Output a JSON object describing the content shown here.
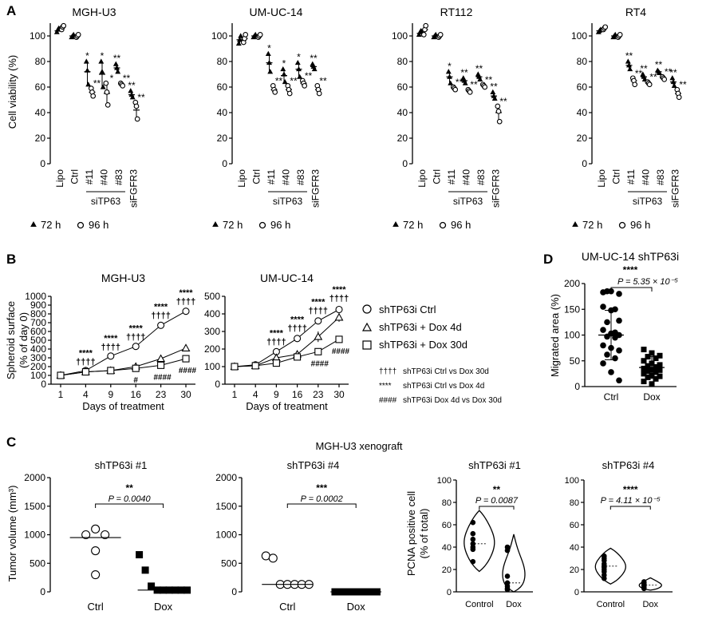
{
  "panels": {
    "A": "A",
    "B": "B",
    "C": "C",
    "D": "D"
  },
  "siTP63": "siTP63",
  "legend_A": {
    "t72": "72 h",
    "t96": "96 h"
  },
  "star_labels": {
    "s1": "*",
    "s2": "**",
    "s3": "***",
    "s4": "****",
    "dagger4": "††††",
    "hash1": "#",
    "hash4": "####"
  },
  "chart_data": [
    {
      "id": "A1",
      "type": "scatter",
      "title": "MGH-U3",
      "ylabel": "Cell viability (%)",
      "ylim": [
        0,
        110
      ],
      "yticks": [
        "0",
        "20",
        "40",
        "60",
        "80",
        "100"
      ],
      "categories": [
        "Lipo",
        "Ctrl",
        "#11",
        "#40",
        "#83",
        "siFGFR3"
      ],
      "series": [
        {
          "name": "72 h",
          "values": [
            104,
            100,
            72,
            70,
            75,
            54
          ],
          "points": [
            [
              103,
              105,
              106
            ],
            [
              99,
              100,
              101
            ],
            [
              80,
              73,
              62
            ],
            [
              80,
              72,
              60
            ],
            [
              78,
              75,
              72
            ],
            [
              57,
              54,
              52
            ]
          ]
        },
        {
          "name": "96 h",
          "values": [
            107,
            100,
            56,
            55,
            62,
            42
          ],
          "points": [
            [
              105,
              107,
              108
            ],
            [
              99,
              100,
              101
            ],
            [
              59,
              56,
              53
            ],
            [
              63,
              56,
              46
            ],
            [
              63,
              62,
              61
            ],
            [
              48,
              45,
              35
            ]
          ]
        }
      ],
      "sig72": [
        "",
        "",
        "*",
        "*",
        "**",
        "**"
      ],
      "sig96": [
        "",
        "",
        "**",
        "*",
        "**",
        "**"
      ]
    },
    {
      "id": "A2",
      "type": "scatter",
      "title": "UM-UC-14",
      "ylabel": "",
      "ylim": [
        0,
        110
      ],
      "yticks": [
        "0",
        "20",
        "40",
        "60",
        "80",
        "100"
      ],
      "categories": [
        "Lipo",
        "Ctrl",
        "#11",
        "#40",
        "#83",
        "siFGFR3"
      ],
      "series": [
        {
          "name": "72 h",
          "values": [
            97,
            100,
            79,
            69,
            74,
            76
          ],
          "points": [
            [
              94,
              97,
              100
            ],
            [
              99,
              100,
              101
            ],
            [
              86,
              79,
              72
            ],
            [
              74,
              70,
              64
            ],
            [
              79,
              74,
              68
            ],
            [
              78,
              76,
              74
            ]
          ]
        },
        {
          "name": "96 h",
          "values": [
            98,
            100,
            58,
            58,
            63,
            58
          ],
          "points": [
            [
              95,
              98,
              101
            ],
            [
              99,
              100,
              101
            ],
            [
              61,
              58,
              56
            ],
            [
              61,
              58,
              55
            ],
            [
              65,
              63,
              61
            ],
            [
              61,
              58,
              55
            ]
          ]
        }
      ],
      "sig72": [
        "",
        "",
        "*",
        "*",
        "*",
        "**"
      ],
      "sig96": [
        "",
        "",
        "**",
        "**",
        "**",
        "**"
      ]
    },
    {
      "id": "A3",
      "type": "scatter",
      "title": "RT112",
      "ylabel": "",
      "ylim": [
        0,
        110
      ],
      "yticks": [
        "0",
        "20",
        "40",
        "60",
        "80",
        "100"
      ],
      "categories": [
        "Lipo",
        "Ctrl",
        "#11",
        "#40",
        "#83",
        "siFGFR3"
      ],
      "series": [
        {
          "name": "72 h",
          "values": [
            102,
            100,
            68,
            65,
            68,
            53
          ],
          "points": [
            [
              101,
              103,
              104
            ],
            [
              99,
              100,
              101
            ],
            [
              72,
              68,
              63
            ],
            [
              67,
              65,
              63
            ],
            [
              70,
              68,
              66
            ],
            [
              56,
              53,
              51
            ]
          ]
        },
        {
          "name": "96 h",
          "values": [
            105,
            100,
            59,
            57,
            61,
            40
          ],
          "points": [
            [
              101,
              105,
              108
            ],
            [
              99,
              100,
              101
            ],
            [
              60,
              59,
              58
            ],
            [
              58,
              57,
              56
            ],
            [
              62,
              61,
              60
            ],
            [
              45,
              41,
              33
            ]
          ]
        }
      ],
      "sig72": [
        "",
        "",
        "*",
        "**",
        "**",
        "**"
      ],
      "sig96": [
        "",
        "",
        "**",
        "**",
        "**",
        "**"
      ]
    },
    {
      "id": "A4",
      "type": "scatter",
      "title": "RT4",
      "ylabel": "",
      "ylim": [
        0,
        110
      ],
      "yticks": [
        "0",
        "20",
        "40",
        "60",
        "80",
        "100"
      ],
      "categories": [
        "Lipo",
        "Ctrl",
        "#11",
        "#40",
        "#83",
        "siFGFR3"
      ],
      "series": [
        {
          "name": "72 h",
          "values": [
            104,
            100,
            77,
            68,
            72,
            64
          ],
          "points": [
            [
              103,
              104,
              105
            ],
            [
              99,
              100,
              101
            ],
            [
              80,
              77,
              74
            ],
            [
              70,
              68,
              66
            ],
            [
              73,
              72,
              71
            ],
            [
              67,
              64,
              61
            ]
          ]
        },
        {
          "name": "96 h",
          "values": [
            106,
            100,
            65,
            63,
            67,
            55
          ],
          "points": [
            [
              105,
              106,
              107
            ],
            [
              99,
              100,
              101
            ],
            [
              67,
              65,
              62
            ],
            [
              64,
              63,
              62
            ],
            [
              68,
              67,
              66
            ],
            [
              58,
              55,
              52
            ]
          ]
        }
      ],
      "sig72": [
        "",
        "",
        "**",
        "**",
        "**",
        "**"
      ],
      "sig96": [
        "",
        "",
        "**",
        "**",
        "**",
        "**"
      ]
    },
    {
      "id": "B1",
      "type": "line",
      "title": "MGH-U3",
      "xlabel": "Days of treatment",
      "ylabel": "Spheroid surface",
      "ylabel2": "(% of day 0)",
      "x": [
        1,
        4,
        9,
        16,
        23,
        30
      ],
      "ylim": [
        0,
        1000
      ],
      "yticks": [
        "0",
        "100",
        "200",
        "300",
        "400",
        "500",
        "600",
        "700",
        "800",
        "900",
        "1000"
      ],
      "series": [
        {
          "name": "shTP63i Ctrl",
          "values": [
            100,
            155,
            320,
            430,
            670,
            830
          ],
          "err": [
            10,
            12,
            15,
            20,
            25,
            25
          ]
        },
        {
          "name": "shTP63i + Dox 4d",
          "values": [
            100,
            140,
            155,
            200,
            290,
            410
          ],
          "err": [
            10,
            10,
            12,
            15,
            15,
            20
          ]
        },
        {
          "name": "shTP63i + Dox 30d",
          "values": [
            100,
            140,
            155,
            180,
            215,
            290
          ],
          "err": [
            10,
            10,
            10,
            12,
            15,
            20
          ]
        }
      ],
      "ann_top": [
        "",
        "****",
        "****",
        "****",
        "****",
        "****"
      ],
      "ann_dag": [
        "",
        "††††",
        "††††",
        "††††",
        "††††",
        "††††"
      ],
      "ann_hash": [
        "",
        "",
        "",
        "#",
        "####",
        "####"
      ]
    },
    {
      "id": "B2",
      "type": "line",
      "title": "UM-UC-14",
      "xlabel": "Days of treatment",
      "ylabel": "",
      "x": [
        1,
        4,
        9,
        16,
        23,
        30
      ],
      "ylim": [
        0,
        500
      ],
      "yticks": [
        "0",
        "100",
        "200",
        "300",
        "400",
        "500"
      ],
      "series": [
        {
          "name": "shTP63i Ctrl",
          "values": [
            100,
            110,
            185,
            260,
            360,
            425
          ],
          "err": [
            8,
            8,
            12,
            15,
            15,
            20
          ]
        },
        {
          "name": "shTP63i + Dox 4d",
          "values": [
            100,
            105,
            150,
            170,
            270,
            380
          ],
          "err": [
            8,
            8,
            10,
            12,
            30,
            25
          ]
        },
        {
          "name": "shTP63i + Dox 30d",
          "values": [
            100,
            105,
            120,
            155,
            185,
            255
          ],
          "err": [
            8,
            8,
            10,
            10,
            12,
            12
          ]
        }
      ],
      "ann_top": [
        "",
        "",
        "****",
        "****",
        "****",
        "****"
      ],
      "ann_dag": [
        "",
        "",
        "††††",
        "††††",
        "††††",
        "††††"
      ],
      "ann_hash": [
        "",
        "",
        "",
        "",
        "####",
        "####"
      ]
    },
    {
      "id": "D",
      "type": "scatter",
      "title": "UM-UC-14 shTP63i",
      "ylabel": "Migrated area (%)",
      "ylim": [
        0,
        200
      ],
      "yticks": [
        "0",
        "50",
        "100",
        "150",
        "200"
      ],
      "categories": [
        "Ctrl",
        "Dox"
      ],
      "means": [
        100,
        37
      ],
      "sd": [
        [
          52,
          148
        ],
        [
          16,
          58
        ]
      ],
      "points": [
        [
          183,
          185,
          180,
          185,
          150,
          155,
          148,
          128,
          125,
          105,
          110,
          103,
          100,
          97,
          95,
          80,
          75,
          70,
          62,
          55,
          45,
          28,
          12
        ],
        [
          72,
          65,
          60,
          58,
          55,
          50,
          45,
          42,
          40,
          38,
          35,
          33,
          32,
          30,
          28,
          25,
          22,
          20,
          18,
          15,
          10,
          5
        ]
      ],
      "p": "P = 5.35 × 10⁻⁵",
      "sig": "****"
    },
    {
      "id": "C1",
      "type": "scatter",
      "title": "shTP63i #1",
      "ylabel": "Tumor volume (mm³)",
      "ylim": [
        0,
        2000
      ],
      "yticks": [
        "0",
        "500",
        "1000",
        "1500",
        "2000"
      ],
      "categories": [
        "Ctrl",
        "Dox"
      ],
      "medians": [
        950,
        30
      ],
      "points": [
        [
          1100,
          1000,
          1000,
          720,
          300
        ],
        [
          650,
          380,
          100,
          30,
          30,
          30,
          30,
          30,
          30
        ]
      ],
      "p": "P = 0.0040",
      "sig": "**"
    },
    {
      "id": "C2",
      "type": "scatter",
      "title": "shTP63i #4",
      "ylabel": "",
      "ylim": [
        0,
        2000
      ],
      "yticks": [
        "0",
        "500",
        "1000",
        "1500",
        "2000"
      ],
      "categories": [
        "Ctrl",
        "Dox"
      ],
      "medians": [
        130,
        0
      ],
      "points": [
        [
          630,
          590,
          130,
          130,
          130,
          130,
          130
        ],
        [
          0,
          0,
          0,
          0,
          0,
          0,
          0,
          0
        ]
      ],
      "p": "P = 0.0002",
      "sig": "***"
    },
    {
      "id": "C3",
      "type": "violin",
      "title": "shTP63i #1",
      "ylabel": "PCNA positive cell",
      "ylabel2": "(% of total)",
      "ylim": [
        0,
        100
      ],
      "yticks": [
        "0",
        "20",
        "40",
        "60",
        "80",
        "100"
      ],
      "categories": [
        "Control",
        "Dox"
      ],
      "points": [
        [
          62,
          52,
          47,
          43,
          40,
          38,
          27
        ],
        [
          40,
          37,
          14,
          8,
          5,
          3,
          2
        ]
      ],
      "p": "P = 0.0087",
      "sig": "**"
    },
    {
      "id": "C4",
      "type": "violin",
      "title": "shTP63i #4",
      "ylabel": "",
      "ylim": [
        0,
        100
      ],
      "yticks": [
        "0",
        "20",
        "40",
        "60",
        "80",
        "100"
      ],
      "categories": [
        "Control",
        "Dox"
      ],
      "points": [
        [
          32,
          30,
          28,
          25,
          23,
          22,
          20,
          18,
          15,
          12
        ],
        [
          9,
          8,
          7,
          6,
          5,
          5,
          4,
          3
        ]
      ],
      "p": "P = 4.11 × 10⁻⁵",
      "sig": "****"
    }
  ],
  "legend_B": {
    "ctrl": "shTP63i  Ctrl",
    "d4": "shTP63i + Dox 4d",
    "d30": "shTP63i + Dox 30d"
  },
  "notes_B": [
    {
      "sym": "††††",
      "text": "shTP63i  Ctrl vs Dox 30d"
    },
    {
      "sym": "****",
      "text": "shTP63i  Ctrl vs Dox 4d"
    },
    {
      "sym": "####",
      "text": "shTP63i  Dox 4d vs Dox 30d"
    }
  ],
  "xenograft_title": "MGH-U3 xenograft"
}
